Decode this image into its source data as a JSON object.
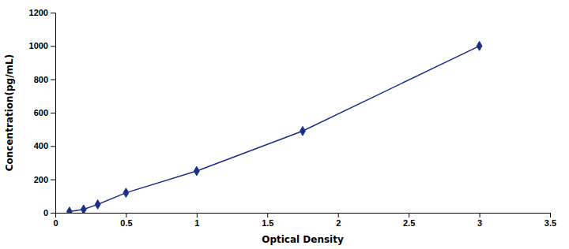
{
  "chart_data": {
    "type": "line",
    "xlabel": "Optical Density",
    "ylabel": "Concentration(pg/mL)",
    "x": [
      0.1,
      0.2,
      0.3,
      0.5,
      1.0,
      1.75,
      3.0
    ],
    "values": [
      7,
      20,
      50,
      120,
      250,
      490,
      1000
    ],
    "xlim": [
      0,
      3.5
    ],
    "ylim": [
      0,
      1200
    ],
    "xticks": [
      0,
      0.5,
      1,
      1.5,
      2,
      2.5,
      3,
      3.5
    ],
    "yticks": [
      0,
      200,
      400,
      600,
      800,
      1000,
      1200
    ],
    "color": "#1a2f8a",
    "marker": "diamond",
    "grid": false
  }
}
